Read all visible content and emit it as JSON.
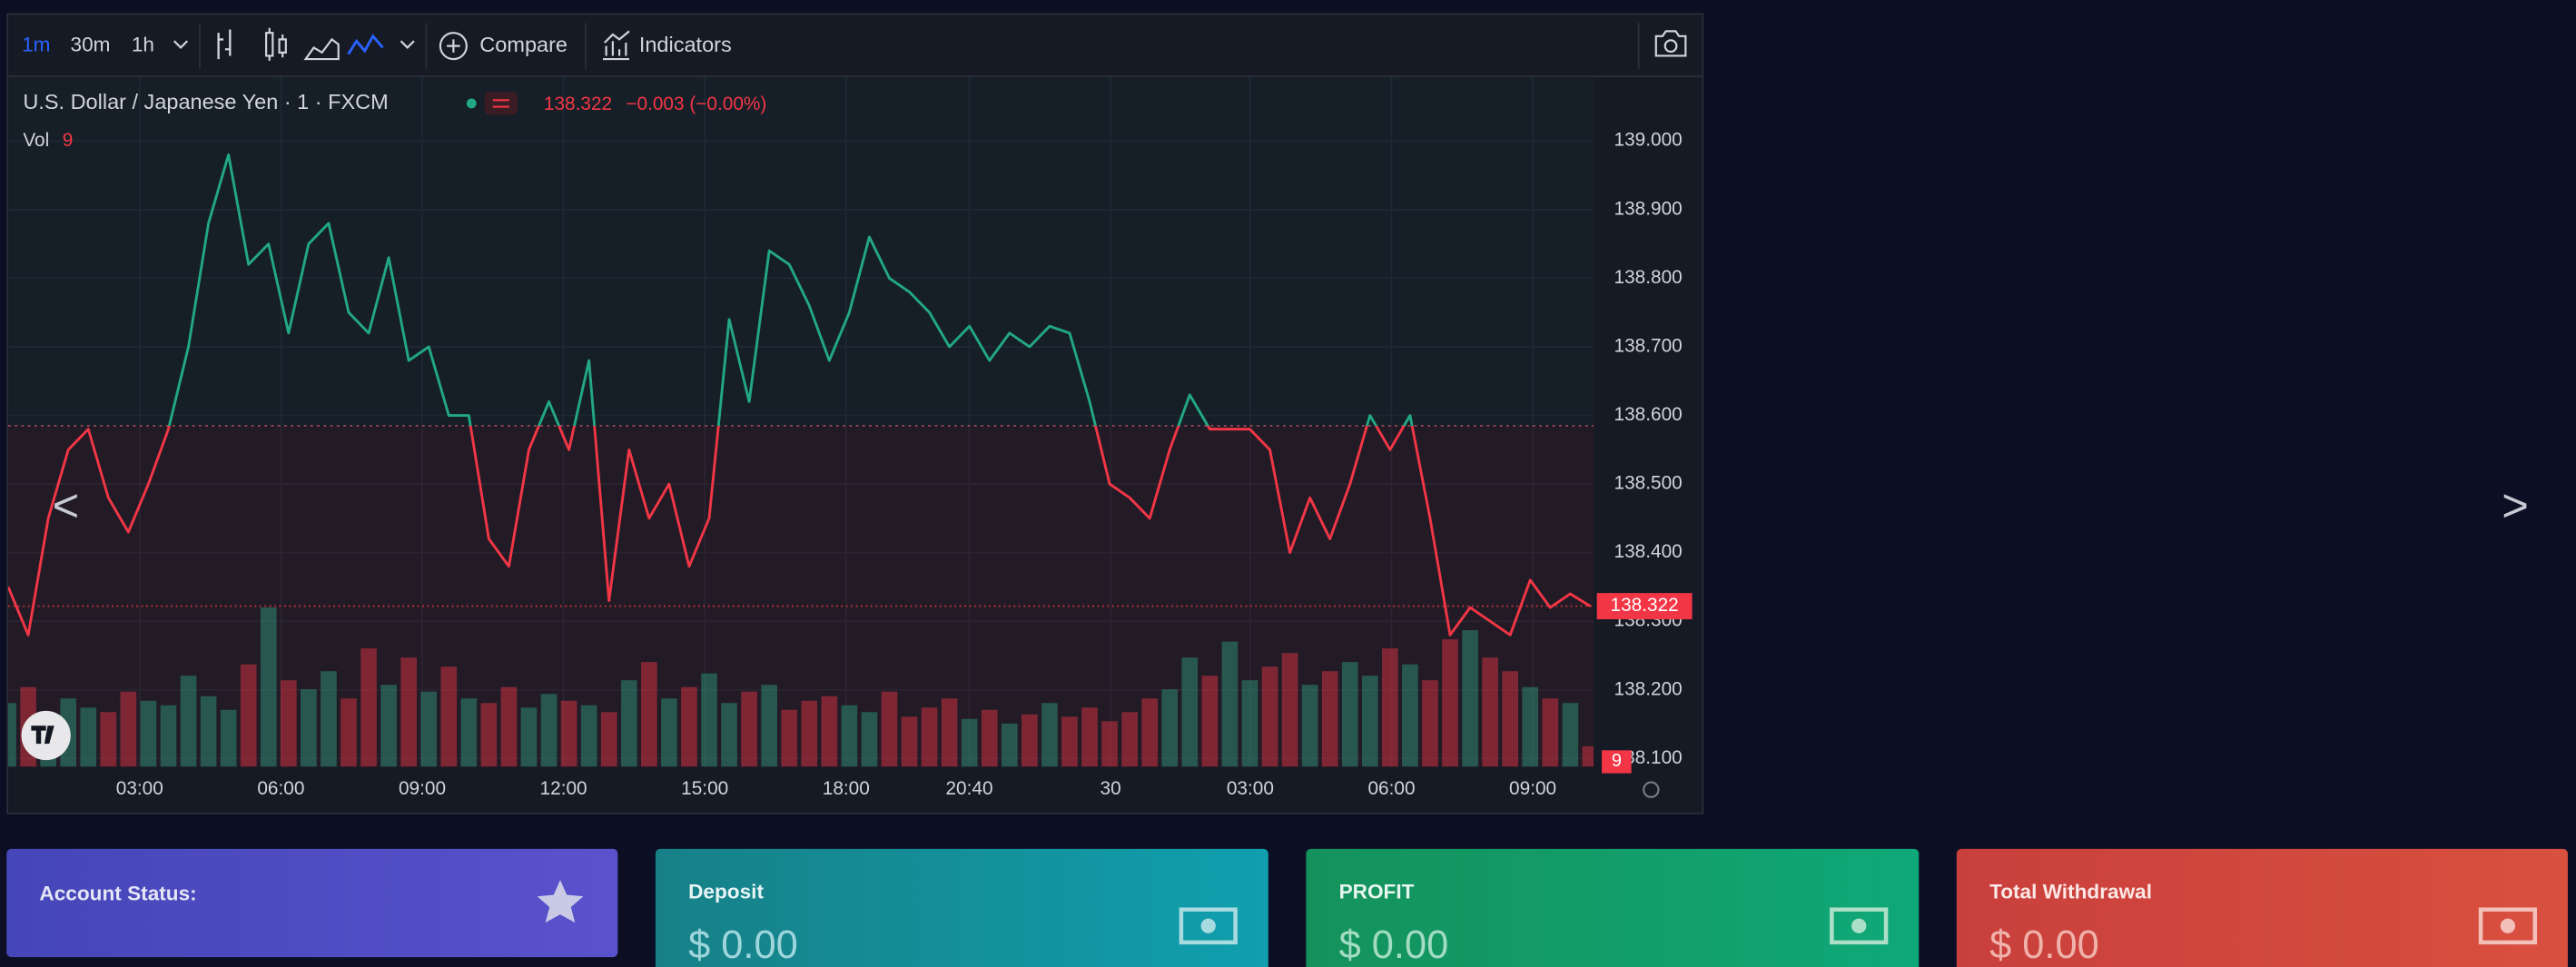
{
  "toolbar": {
    "intervals": [
      "1m",
      "30m",
      "1h"
    ],
    "compare": "Compare",
    "indicators": "Indicators"
  },
  "chart": {
    "type": "line",
    "title": "U.S. Dollar / Japanese Yen · 1 · FXCM",
    "last_price": 138.322,
    "change": "−0.003 (−0.00%)",
    "volume_label": "Vol",
    "up_color": "#22a884",
    "down_color": "#f23645",
    "baseline": 138.585,
    "ylim": [
      138.088,
      139.093
    ],
    "yticks": [
      {
        "value": 139,
        "label": "139.000"
      },
      {
        "value": 138.9,
        "label": "138.900"
      },
      {
        "value": 138.8,
        "label": "138.800"
      },
      {
        "value": 138.7,
        "label": "138.700"
      },
      {
        "value": 138.6,
        "label": "138.600"
      },
      {
        "value": 138.5,
        "label": "138.500"
      },
      {
        "value": 138.4,
        "label": "138.400"
      },
      {
        "value": 138.3,
        "label": "138.300"
      },
      {
        "value": 138.2,
        "label": "138.200"
      },
      {
        "value": 138.1,
        "label": "138.100"
      }
    ],
    "xticks": [
      "03:00",
      "06:00",
      "09:00",
      "12:00",
      "15:00",
      "18:00",
      "20:40",
      "30",
      "03:00",
      "06:00",
      "09:00"
    ],
    "values": [
      138.35,
      138.28,
      138.45,
      138.55,
      138.58,
      138.48,
      138.43,
      138.5,
      138.58,
      138.7,
      138.88,
      138.98,
      138.82,
      138.85,
      138.72,
      138.85,
      138.88,
      138.75,
      138.72,
      138.83,
      138.68,
      138.7,
      138.6,
      138.6,
      138.42,
      138.38,
      138.55,
      138.62,
      138.55,
      138.68,
      138.33,
      138.55,
      138.45,
      138.5,
      138.38,
      138.45,
      138.74,
      138.62,
      138.84,
      138.82,
      138.76,
      138.68,
      138.75,
      138.86,
      138.8,
      138.78,
      138.75,
      138.7,
      138.73,
      138.68,
      138.72,
      138.7,
      138.73,
      138.72,
      138.62,
      138.5,
      138.48,
      138.45,
      138.55,
      138.63,
      138.58,
      138.58,
      138.58,
      138.55,
      138.4,
      138.48,
      138.42,
      138.5,
      138.6,
      138.55,
      138.6,
      138.45,
      138.28,
      138.32,
      138.3,
      138.28,
      138.36,
      138.32,
      138.34,
      138.322
    ],
    "volume": {
      "values": [
        28,
        35,
        22,
        30,
        26,
        24,
        33,
        29,
        27,
        40,
        31,
        25,
        45,
        70,
        38,
        34,
        42,
        30,
        52,
        36,
        48,
        33,
        44,
        30,
        28,
        35,
        26,
        32,
        29,
        27,
        24,
        38,
        46,
        30,
        35,
        41,
        28,
        33,
        36,
        25,
        29,
        31,
        27,
        24,
        33,
        22,
        26,
        30,
        21,
        25,
        19,
        23,
        28,
        22,
        26,
        20,
        24,
        30,
        34,
        48,
        40,
        55,
        38,
        44,
        50,
        36,
        42,
        46,
        40,
        52,
        45,
        38,
        56,
        60,
        48,
        42,
        35,
        30,
        28,
        9
      ]
    }
  },
  "nav": {
    "prev": "<",
    "next": ">"
  },
  "cards": [
    {
      "title": "Account Status:"
    },
    {
      "title": "Deposit",
      "value": "$ 0.00"
    },
    {
      "title": "PROFIT",
      "value": "$ 0.00"
    },
    {
      "title": "Total Withdrawal",
      "value": "$ 0.00"
    }
  ]
}
